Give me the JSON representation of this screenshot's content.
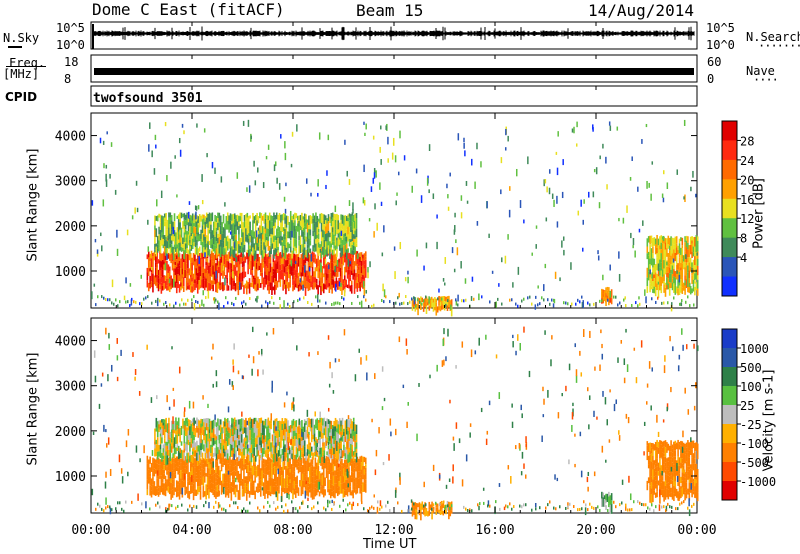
{
  "header": {
    "title": "Dome C East (fitACF)",
    "beam": "Beam 15",
    "date": "14/Aug/2014"
  },
  "top_panels": {
    "nsky_label": "N.Sky",
    "nsky_ticks": [
      "10^5",
      "10^0"
    ],
    "nsearch_label": "N.Search",
    "nsearch_ticks": [
      "10^5",
      "10^0"
    ],
    "freq_label": "Freq.",
    "freq_unit": "[MHz]",
    "freq_ticks": [
      "18",
      "8"
    ],
    "nave_label": "Nave",
    "nave_ticks": [
      "60",
      "0"
    ],
    "cpid_label": "CPID",
    "cpid_text": "twofsound 3501"
  },
  "colors": {
    "power_scale": [
      "#1030ff",
      "#2a55b8",
      "#3f8a5a",
      "#60c040",
      "#e8e020",
      "#ffa000",
      "#ff6a00",
      "#ff2a10",
      "#e00000"
    ],
    "velocity_scale": [
      "#1a3cc8",
      "#2a58a8",
      "#2e8048",
      "#58c040",
      "#bdbdbd",
      "#ffb000",
      "#ff8000",
      "#ff4a00",
      "#e00000"
    ]
  },
  "chart_data": [
    {
      "type": "heatmap",
      "name": "power",
      "xlabel": "Time UT",
      "ylabel": "Slant Range [km]",
      "xlim": [
        0,
        24
      ],
      "ylim": [
        180,
        4500
      ],
      "x_ticks": [
        "00:00",
        "04:00",
        "08:00",
        "12:00",
        "16:00",
        "20:00",
        "00:00"
      ],
      "y_ticks": [
        1000,
        2000,
        3000,
        4000
      ],
      "colorbar_label": "Power [dB]",
      "colorbar_ticks": [
        "28",
        "24",
        "20",
        "16",
        "12",
        "8",
        "4"
      ],
      "colorbar_range": [
        0,
        30
      ],
      "regions": [
        {
          "t0": 2.2,
          "t1": 10.9,
          "r0": 650,
          "r1": 1450,
          "level": 24
        },
        {
          "t0": 2.5,
          "t1": 10.5,
          "r0": 1450,
          "r1": 2300,
          "level": 12
        },
        {
          "t0": 12.7,
          "t1": 14.3,
          "r0": 200,
          "r1": 450,
          "level": 18
        },
        {
          "t0": 20.2,
          "t1": 20.6,
          "r0": 350,
          "r1": 650,
          "level": 20
        },
        {
          "t0": 22.0,
          "t1": 24.0,
          "r0": 600,
          "r1": 1800,
          "level": 16
        }
      ]
    },
    {
      "type": "heatmap",
      "name": "velocity",
      "xlabel": "Time UT",
      "ylabel": "Slant Range [km]",
      "xlim": [
        0,
        24
      ],
      "ylim": [
        180,
        4500
      ],
      "x_ticks": [
        "00:00",
        "04:00",
        "08:00",
        "12:00",
        "16:00",
        "20:00",
        "00:00"
      ],
      "y_ticks": [
        1000,
        2000,
        3000,
        4000
      ],
      "colorbar_label": "Velocity [m s-1]",
      "colorbar_ticks": [
        "1000",
        "500",
        "100",
        "25",
        "-25",
        "-100",
        "-500",
        "-1000"
      ],
      "regions": [
        {
          "t0": 2.2,
          "t1": 10.9,
          "r0": 650,
          "r1": 1450,
          "level": -200
        },
        {
          "t0": 2.5,
          "t1": 10.5,
          "r0": 1450,
          "r1": 2300,
          "level": 0
        },
        {
          "t0": 12.7,
          "t1": 14.3,
          "r0": 200,
          "r1": 450,
          "level": -150
        },
        {
          "t0": 20.2,
          "t1": 20.6,
          "r0": 350,
          "r1": 650,
          "level": 100
        },
        {
          "t0": 22.0,
          "t1": 24.0,
          "r0": 600,
          "r1": 1800,
          "level": -200
        }
      ]
    }
  ]
}
